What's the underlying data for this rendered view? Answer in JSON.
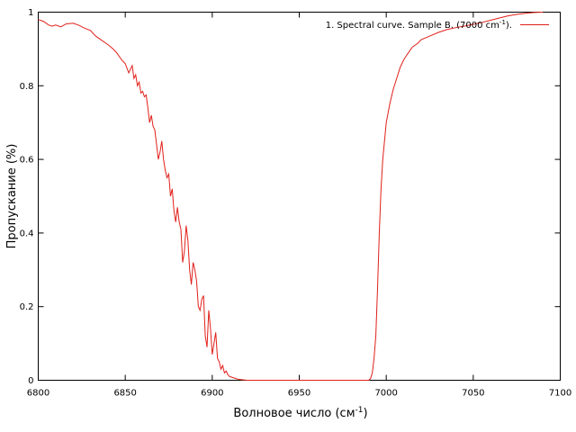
{
  "chart_data": {
    "type": "line",
    "title": "",
    "xlabel": "Волновое число (см",
    "xlabel_sup": "-1",
    "xlabel_end": ")",
    "ylabel": "Пропускание (%)",
    "xlim": [
      6800,
      7100
    ],
    "ylim": [
      0,
      1
    ],
    "xticks": [
      6800,
      6850,
      6900,
      6950,
      7000,
      7050,
      7100
    ],
    "yticks": [
      0,
      0.2,
      0.4,
      0.6,
      0.8,
      1
    ],
    "grid": false,
    "legend_position": "top-right",
    "series": [
      {
        "name": "1. Spectral curve. Sample B. (7000 cm",
        "name_sup": "-1",
        "name_end": ").",
        "color": "#e0201a",
        "x": [
          6800,
          6803,
          6806,
          6808,
          6810,
          6813,
          6816,
          6820,
          6823,
          6826,
          6830,
          6833,
          6836,
          6840,
          6843,
          6845,
          6848,
          6850,
          6852,
          6854,
          6855,
          6856,
          6857,
          6858,
          6859,
          6860,
          6861,
          6862,
          6863,
          6864,
          6865,
          6866,
          6867,
          6868,
          6869,
          6870,
          6871,
          6872,
          6873,
          6874,
          6875,
          6876,
          6877,
          6878,
          6879,
          6880,
          6881,
          6882,
          6883,
          6884,
          6885,
          6886,
          6887,
          6888,
          6889,
          6890,
          6891,
          6892,
          6893,
          6894,
          6895,
          6896,
          6897,
          6898,
          6899,
          6900,
          6901,
          6902,
          6903,
          6904,
          6905,
          6906,
          6907,
          6908,
          6909,
          6910,
          6912,
          6914,
          6916,
          6918,
          6920,
          6940,
          6960,
          6980,
          6990,
          6991,
          6992,
          6993,
          6994,
          6995,
          6996,
          6997,
          6998,
          6999,
          7000,
          7002,
          7004,
          7006,
          7008,
          7010,
          7012,
          7015,
          7018,
          7020,
          7025,
          7030,
          7035,
          7040,
          7045,
          7050,
          7055,
          7060,
          7065,
          7070,
          7075,
          7080,
          7085,
          7090
        ],
        "y": [
          0.98,
          0.975,
          0.965,
          0.962,
          0.965,
          0.96,
          0.968,
          0.97,
          0.965,
          0.958,
          0.95,
          0.935,
          0.925,
          0.912,
          0.9,
          0.89,
          0.87,
          0.86,
          0.835,
          0.855,
          0.82,
          0.83,
          0.8,
          0.81,
          0.78,
          0.785,
          0.77,
          0.775,
          0.74,
          0.7,
          0.72,
          0.69,
          0.68,
          0.64,
          0.6,
          0.62,
          0.65,
          0.6,
          0.57,
          0.55,
          0.56,
          0.5,
          0.52,
          0.46,
          0.43,
          0.47,
          0.43,
          0.41,
          0.32,
          0.35,
          0.42,
          0.38,
          0.3,
          0.26,
          0.32,
          0.3,
          0.27,
          0.2,
          0.19,
          0.22,
          0.23,
          0.12,
          0.09,
          0.19,
          0.14,
          0.07,
          0.1,
          0.13,
          0.06,
          0.05,
          0.03,
          0.04,
          0.02,
          0.025,
          0.015,
          0.01,
          0.007,
          0.004,
          0.002,
          0.001,
          0,
          0,
          0,
          0,
          0,
          0.005,
          0.02,
          0.06,
          0.12,
          0.25,
          0.4,
          0.52,
          0.6,
          0.65,
          0.7,
          0.75,
          0.79,
          0.82,
          0.85,
          0.87,
          0.885,
          0.905,
          0.915,
          0.925,
          0.935,
          0.945,
          0.953,
          0.958,
          0.962,
          0.967,
          0.972,
          0.978,
          0.984,
          0.99,
          0.994,
          0.997,
          0.999,
          1.0
        ]
      }
    ]
  }
}
